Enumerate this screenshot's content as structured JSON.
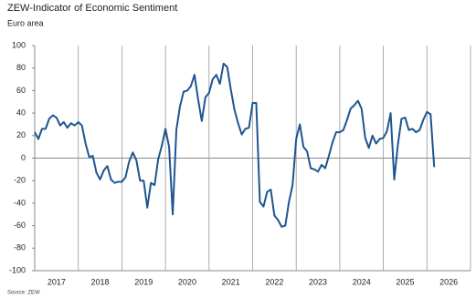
{
  "chart_data": {
    "type": "line",
    "title": "ZEW-Indicator of Economic Sentiment",
    "subtitle": "Euro area",
    "source": "Source: ZEW",
    "categories": [
      "2017",
      null,
      null,
      null,
      null,
      null,
      null,
      null,
      null,
      null,
      null,
      null,
      "2018",
      null,
      null,
      null,
      null,
      null,
      null,
      null,
      null,
      null,
      null,
      null,
      "2019",
      null,
      null,
      null,
      null,
      null,
      null,
      null,
      null,
      null,
      null,
      null,
      "2020",
      null,
      null,
      null,
      null,
      null,
      null,
      null,
      null,
      null,
      null,
      null,
      "2021",
      null,
      null,
      null,
      null,
      null,
      null,
      null,
      null,
      null,
      null,
      null,
      "2022",
      null,
      null,
      null,
      null,
      null,
      null,
      null,
      null,
      null,
      null,
      null,
      "2023",
      null,
      null,
      null,
      null,
      null,
      null,
      null,
      null,
      null,
      null,
      null,
      "2024",
      null,
      null,
      null,
      null,
      null,
      null,
      null,
      null,
      null,
      null,
      null,
      "2025",
      null,
      null,
      null,
      null,
      null,
      null,
      null,
      null,
      null,
      null,
      null,
      "2026",
      null,
      null
    ],
    "series": [
      {
        "name": "Euro area",
        "color": "#1f5591",
        "values": [
          23,
          17,
          26,
          26,
          35,
          38,
          36,
          29,
          32,
          27,
          31,
          29,
          32,
          29,
          13,
          1,
          2,
          -13,
          -19,
          -11,
          -7,
          -19,
          -22,
          -21,
          -21,
          -17,
          -3,
          5,
          -2,
          -20,
          -20,
          -44,
          -22,
          -24,
          -1,
          11,
          26,
          10,
          -50,
          25,
          46,
          59,
          60,
          64,
          74,
          52,
          33,
          54,
          58,
          70,
          74,
          66,
          84,
          81,
          61,
          43,
          31,
          21,
          26,
          27,
          49,
          49,
          -39,
          -43,
          -30,
          -28,
          -51,
          -55,
          -61,
          -60,
          -39,
          -24,
          17,
          30,
          10,
          6,
          -9,
          -10,
          -12,
          -6,
          -9,
          2,
          14,
          23,
          23,
          25,
          34,
          44,
          47,
          51,
          44,
          18,
          9,
          20,
          13,
          17,
          18,
          24,
          40,
          -19,
          12,
          35,
          36,
          25,
          26,
          23,
          25,
          34,
          41,
          39,
          -8
        ]
      }
    ],
    "ylim": [
      -100,
      100
    ],
    "yticks": [
      -100,
      -80,
      -60,
      -40,
      -20,
      0,
      20,
      40,
      60,
      80,
      100
    ]
  }
}
